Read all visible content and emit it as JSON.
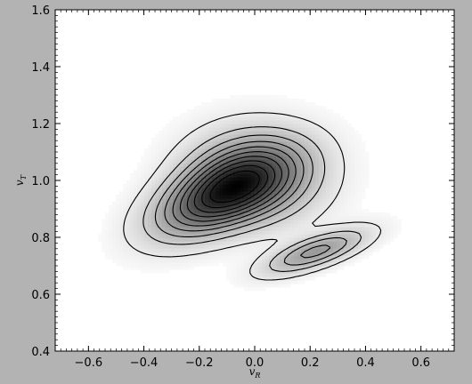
{
  "chart_data": {
    "type": "heatmap",
    "subtype": "density-with-contours",
    "xlabel": "v",
    "xlabel_sub": "R",
    "ylabel": "v",
    "ylabel_sub": "T",
    "xlim": [
      -0.72,
      0.72
    ],
    "ylim": [
      0.4,
      1.6
    ],
    "xticks": [
      -0.6,
      -0.4,
      -0.2,
      0.0,
      0.2,
      0.4,
      0.6
    ],
    "xtick_labels": [
      "−0.6",
      "−0.4",
      "−0.2",
      "0.0",
      "0.2",
      "0.4",
      "0.6"
    ],
    "yticks": [
      0.4,
      0.6,
      0.8,
      1.0,
      1.2,
      1.4,
      1.6
    ],
    "ytick_labels": [
      "0.4",
      "0.6",
      "0.8",
      "1.0",
      "1.2",
      "1.4",
      "1.6"
    ],
    "colormap": "greyscale (white = low, black = high)",
    "contour_color": "#000000",
    "components": [
      {
        "center": [
          -0.12,
          0.95
        ],
        "peak": 1.0
      },
      {
        "center": [
          0.0,
          1.02
        ],
        "peak": 0.55
      },
      {
        "center": [
          0.22,
          0.75
        ],
        "peak": 0.5
      }
    ],
    "contour_levels": [
      0.06,
      0.15,
      0.24,
      0.33,
      0.42,
      0.51,
      0.6,
      0.69,
      0.78,
      0.87
    ]
  }
}
